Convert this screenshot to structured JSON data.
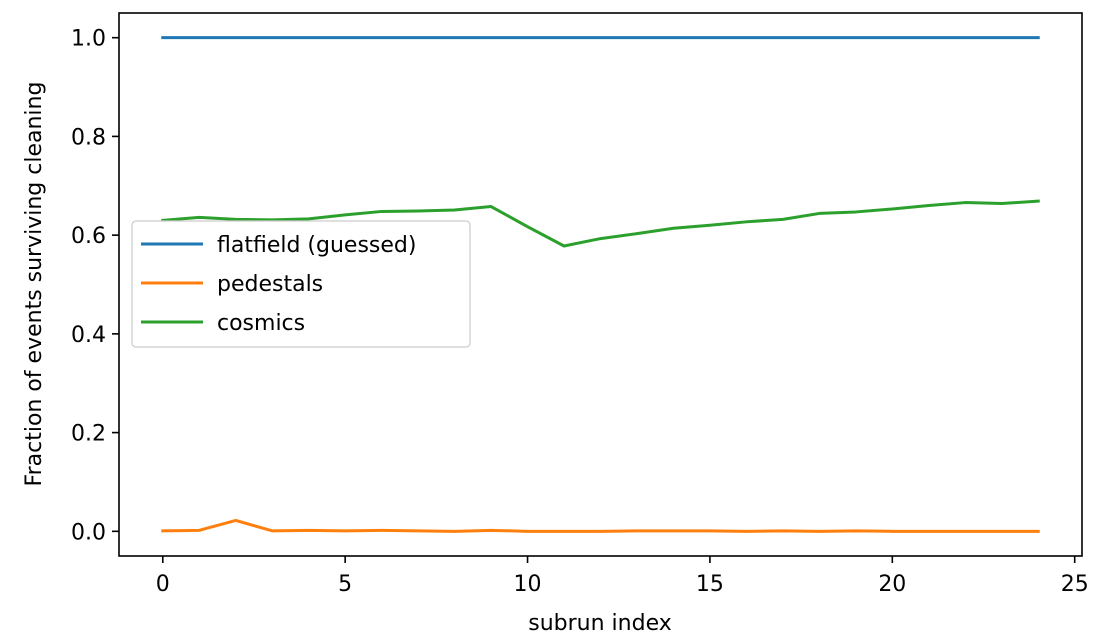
{
  "chart_data": {
    "type": "line",
    "xlabel": "subrun index",
    "ylabel": "Fraction of events surviving cleaning",
    "xlim": [
      -1.2,
      25.2
    ],
    "ylim": [
      -0.05,
      1.05
    ],
    "xticks": [
      0,
      5,
      10,
      15,
      20,
      25
    ],
    "xtick_labels": [
      "0",
      "5",
      "10",
      "15",
      "20",
      "25"
    ],
    "yticks": [
      0.0,
      0.2,
      0.4,
      0.6,
      0.8,
      1.0
    ],
    "ytick_labels": [
      "0.0",
      "0.2",
      "0.4",
      "0.6",
      "0.8",
      "1.0"
    ],
    "grid": false,
    "legend_position": "center-left",
    "x": [
      0,
      1,
      2,
      3,
      4,
      5,
      6,
      7,
      8,
      9,
      10,
      11,
      12,
      13,
      14,
      15,
      16,
      17,
      18,
      19,
      20,
      21,
      22,
      23,
      24
    ],
    "series": [
      {
        "name": "flatfield (guessed)",
        "color": "#1f77b4",
        "values": [
          1.0,
          1.0,
          1.0,
          1.0,
          1.0,
          1.0,
          1.0,
          1.0,
          1.0,
          1.0,
          1.0,
          1.0,
          1.0,
          1.0,
          1.0,
          1.0,
          1.0,
          1.0,
          1.0,
          1.0,
          1.0,
          1.0,
          1.0,
          1.0,
          1.0
        ]
      },
      {
        "name": "pedestals",
        "color": "#ff7f0e",
        "values": [
          0.001,
          0.002,
          0.022,
          0.001,
          0.002,
          0.001,
          0.002,
          0.001,
          0.0,
          0.002,
          0.0,
          0.0,
          0.0,
          0.001,
          0.001,
          0.001,
          0.0,
          0.001,
          0.0,
          0.001,
          0.0,
          0.0,
          0.0,
          0.0,
          0.0
        ]
      },
      {
        "name": "cosmics",
        "color": "#2ca02c",
        "values": [
          0.63,
          0.636,
          0.632,
          0.631,
          0.633,
          0.641,
          0.648,
          0.649,
          0.651,
          0.658,
          0.617,
          0.578,
          0.593,
          0.603,
          0.614,
          0.62,
          0.627,
          0.632,
          0.644,
          0.647,
          0.653,
          0.66,
          0.666,
          0.664,
          0.669
        ]
      }
    ]
  }
}
